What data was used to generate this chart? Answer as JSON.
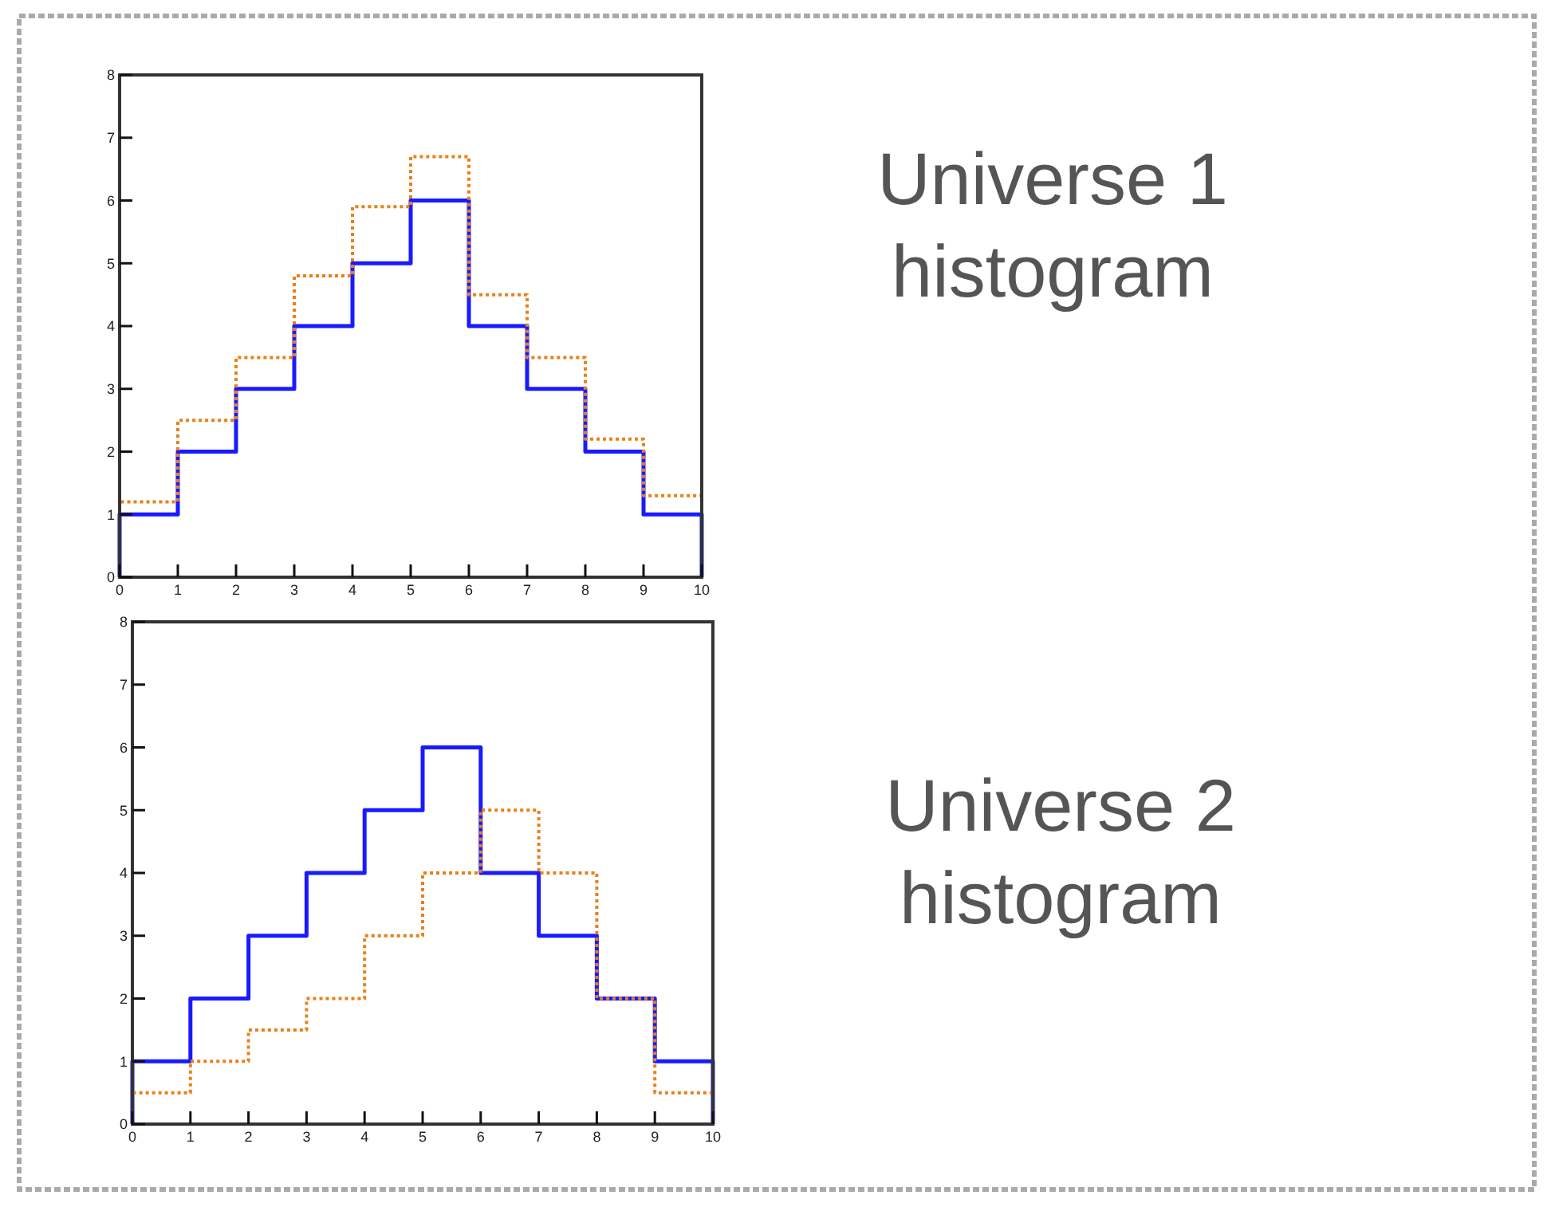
{
  "chart_data": [
    {
      "type": "histogram",
      "annotations": [
        "Universe 1 histogram"
      ],
      "bins": [
        0,
        1,
        2,
        3,
        4,
        5,
        6,
        7,
        8,
        9,
        10
      ],
      "xlim": [
        0,
        10
      ],
      "xticks": [
        0,
        1,
        2,
        3,
        4,
        5,
        6,
        7,
        8,
        9,
        10
      ],
      "ylim": [
        0,
        8
      ],
      "yticks": [
        0,
        1,
        2,
        3,
        4,
        5,
        6,
        7,
        8
      ],
      "grid": false,
      "series": [
        {
          "color": "#1a1aff",
          "line_style": "solid",
          "values": [
            1,
            2,
            3,
            4,
            5,
            6,
            4,
            3,
            2,
            1
          ]
        },
        {
          "color": "#e8801a",
          "line_style": "dotted",
          "values": [
            1.2,
            2.5,
            3.5,
            4.8,
            5.9,
            6.7,
            4.5,
            3.5,
            2.2,
            1.3
          ]
        }
      ]
    },
    {
      "type": "histogram",
      "annotations": [
        "Universe 2 histogram"
      ],
      "bins": [
        0,
        1,
        2,
        3,
        4,
        5,
        6,
        7,
        8,
        9,
        10
      ],
      "xlim": [
        0,
        10
      ],
      "xticks": [
        0,
        1,
        2,
        3,
        4,
        5,
        6,
        7,
        8,
        9,
        10
      ],
      "ylim": [
        0,
        8
      ],
      "yticks": [
        0,
        1,
        2,
        3,
        4,
        5,
        6,
        7,
        8
      ],
      "grid": false,
      "series": [
        {
          "color": "#1a1aff",
          "line_style": "solid",
          "values": [
            1,
            2,
            3,
            4,
            5,
            6,
            4,
            3,
            2,
            1
          ]
        },
        {
          "color": "#e8801a",
          "line_style": "dotted",
          "values": [
            0.5,
            1,
            1.5,
            2,
            3,
            4,
            5,
            4,
            2,
            0.5
          ]
        }
      ]
    }
  ]
}
